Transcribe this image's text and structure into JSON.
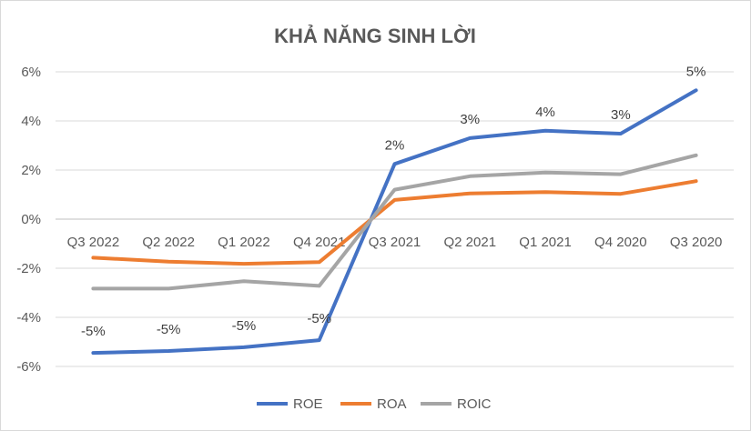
{
  "chart_data": {
    "type": "line",
    "title": "KHẢ NĂNG SINH LỜI",
    "categories": [
      "Q3 2022",
      "Q2 2022",
      "Q1 2022",
      "Q4 2021",
      "Q3 2021",
      "Q2 2021",
      "Q1 2021",
      "Q4 2020",
      "Q3 2020"
    ],
    "ylim": [
      -6,
      6
    ],
    "yticks": [
      -6,
      -4,
      -2,
      0,
      2,
      4,
      6
    ],
    "ytick_labels": [
      "-6%",
      "-4%",
      "-2%",
      "0%",
      "2%",
      "4%",
      "6%"
    ],
    "grid": true,
    "legend_position": "bottom",
    "series": [
      {
        "name": "ROE",
        "color": "#4472C4",
        "values": [
          -5.45,
          -5.37,
          -5.22,
          -4.93,
          2.25,
          3.3,
          3.6,
          3.48,
          5.25
        ],
        "labels": [
          "-5%",
          "-5%",
          "-5%",
          "-5%",
          "2%",
          "3%",
          "4%",
          "3%",
          "5%"
        ]
      },
      {
        "name": "ROA",
        "color": "#ED7D31",
        "values": [
          -1.57,
          -1.73,
          -1.82,
          -1.75,
          0.78,
          1.05,
          1.1,
          1.03,
          1.55
        ]
      },
      {
        "name": "ROIC",
        "color": "#A5A5A5",
        "values": [
          -2.83,
          -2.83,
          -2.53,
          -2.72,
          1.2,
          1.75,
          1.9,
          1.83,
          2.6
        ]
      }
    ]
  }
}
